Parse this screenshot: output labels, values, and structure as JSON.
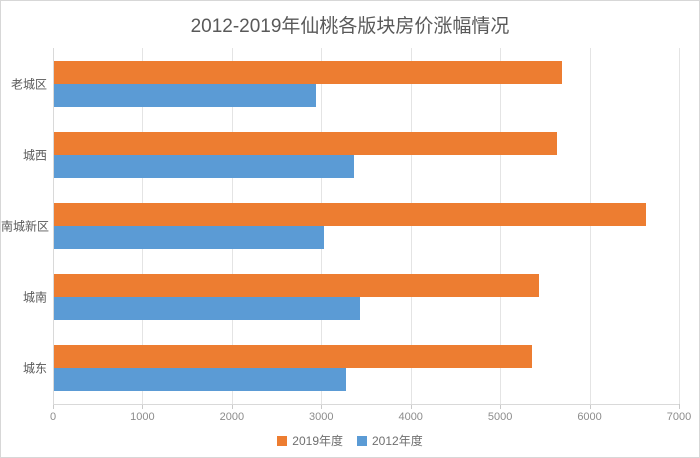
{
  "window": {
    "background": "#ffffff",
    "border_color": "#d7d7d7"
  },
  "chart_data": {
    "type": "bar",
    "orientation": "horizontal",
    "title": "2012-2019年仙桃各版块房价涨幅情况",
    "categories": [
      "老城区",
      "城西",
      "南城新区",
      "城南",
      "城东"
    ],
    "series": [
      {
        "name": "2019年度",
        "color": "#ED7D31",
        "values": [
          5680,
          5630,
          6620,
          5420,
          5340
        ]
      },
      {
        "name": "2012年度",
        "color": "#5B9BD5",
        "values": [
          2930,
          3360,
          3020,
          3420,
          3260
        ]
      }
    ],
    "x_ticks": [
      0,
      1000,
      2000,
      3000,
      4000,
      5000,
      6000,
      7000
    ],
    "xlim": [
      0,
      7000
    ],
    "xlabel": "",
    "ylabel": "",
    "grid": "vertical",
    "legend_position": "bottom",
    "colors": {
      "title_text": "#595959",
      "category_text": "#595959",
      "axis_text": "#8c8c8c",
      "gridline": "#e4e4e4",
      "axis_line": "#d9d9d9"
    }
  }
}
